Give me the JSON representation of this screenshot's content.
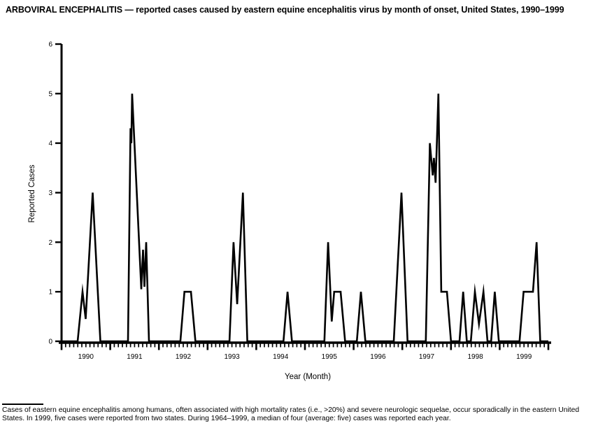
{
  "title": "ARBOVIRAL ENCEPHALITIS — reported cases caused by eastern equine encephalitis virus by month of onset, United States, 1990–1999",
  "footnote": {
    "text": "Cases of eastern equine encephalitis among humans, often associated with high mortality rates (i.e., >20%) and severe neurologic sequelae, occur sporadically in the eastern United States. In 1999, five cases were reported from two states. During 1964–1999, a median of four (average: five) cases was reported each year."
  },
  "chart_data": {
    "type": "line",
    "title": "ARBOVIRAL ENCEPHALITIS — reported cases caused by eastern equine encephalitis virus by month of onset, United States, 1990–1999",
    "xlabel": "Year (Month)",
    "ylabel": "Reported Cases",
    "ylim": [
      0,
      6
    ],
    "yticks": [
      0,
      1,
      2,
      3,
      4,
      5,
      6
    ],
    "years": [
      1990,
      1991,
      1992,
      1993,
      1994,
      1995,
      1996,
      1997,
      1998,
      1999
    ],
    "x_axis_description": "120 monthly tick marks, Jan 1990 through Dec 1999; longer ticks at year boundaries; year labels centered mid-year",
    "grid": false,
    "legend": "none",
    "line_color": "#000000",
    "peak_monthly_cases_by_year": {
      "1990": 3,
      "1991": 5,
      "1992": 1,
      "1993": 3,
      "1994": 1,
      "1995": 2,
      "1996": 3,
      "1997": 5,
      "1998": 1,
      "1999": 2
    },
    "points_unit": "x = months since Jan 1990 (fractional position read from plot), y = reported cases",
    "line_points": [
      [
        0,
        0
      ],
      [
        3.97,
        0
      ],
      [
        5.17,
        1
      ],
      [
        5.95,
        0.45
      ],
      [
        7.67,
        3
      ],
      [
        9.57,
        0
      ],
      [
        16.38,
        0
      ],
      [
        17.0,
        4.3
      ],
      [
        17.2,
        4.0
      ],
      [
        17.4,
        5.0
      ],
      [
        19.66,
        1.05
      ],
      [
        20.09,
        1.85
      ],
      [
        20.43,
        1.1
      ],
      [
        20.86,
        2.0
      ],
      [
        21.55,
        0
      ],
      [
        29.3,
        0
      ],
      [
        30.3,
        1
      ],
      [
        31.9,
        1
      ],
      [
        33.0,
        0
      ],
      [
        41.4,
        0
      ],
      [
        42.4,
        2
      ],
      [
        43.3,
        0.75
      ],
      [
        44.7,
        3
      ],
      [
        45.8,
        0
      ],
      [
        54.7,
        0
      ],
      [
        55.7,
        1
      ],
      [
        56.8,
        0
      ],
      [
        64.8,
        0
      ],
      [
        65.7,
        2
      ],
      [
        66.6,
        0.4
      ],
      [
        67.2,
        1
      ],
      [
        68.8,
        1
      ],
      [
        69.9,
        0
      ],
      [
        72.8,
        0
      ],
      [
        73.8,
        1
      ],
      [
        74.9,
        0
      ],
      [
        81.9,
        0
      ],
      [
        83.8,
        3
      ],
      [
        85.3,
        0
      ],
      [
        89.8,
        0
      ],
      [
        90.8,
        4
      ],
      [
        91.5,
        3.35
      ],
      [
        91.8,
        3.7
      ],
      [
        92.2,
        3.2
      ],
      [
        92.9,
        5
      ],
      [
        93.6,
        1
      ],
      [
        95.0,
        1
      ],
      [
        96.0,
        0
      ],
      [
        98.1,
        0
      ],
      [
        99.0,
        1
      ],
      [
        99.9,
        0
      ],
      [
        100.9,
        0
      ],
      [
        101.9,
        1
      ],
      [
        102.9,
        0.35
      ],
      [
        104.0,
        1
      ],
      [
        105.0,
        0
      ],
      [
        105.9,
        0
      ],
      [
        106.8,
        1
      ],
      [
        107.8,
        0
      ],
      [
        112.9,
        0
      ],
      [
        113.9,
        1
      ],
      [
        116.2,
        1
      ],
      [
        117.1,
        2
      ],
      [
        118.0,
        0
      ],
      [
        120,
        0
      ]
    ]
  }
}
